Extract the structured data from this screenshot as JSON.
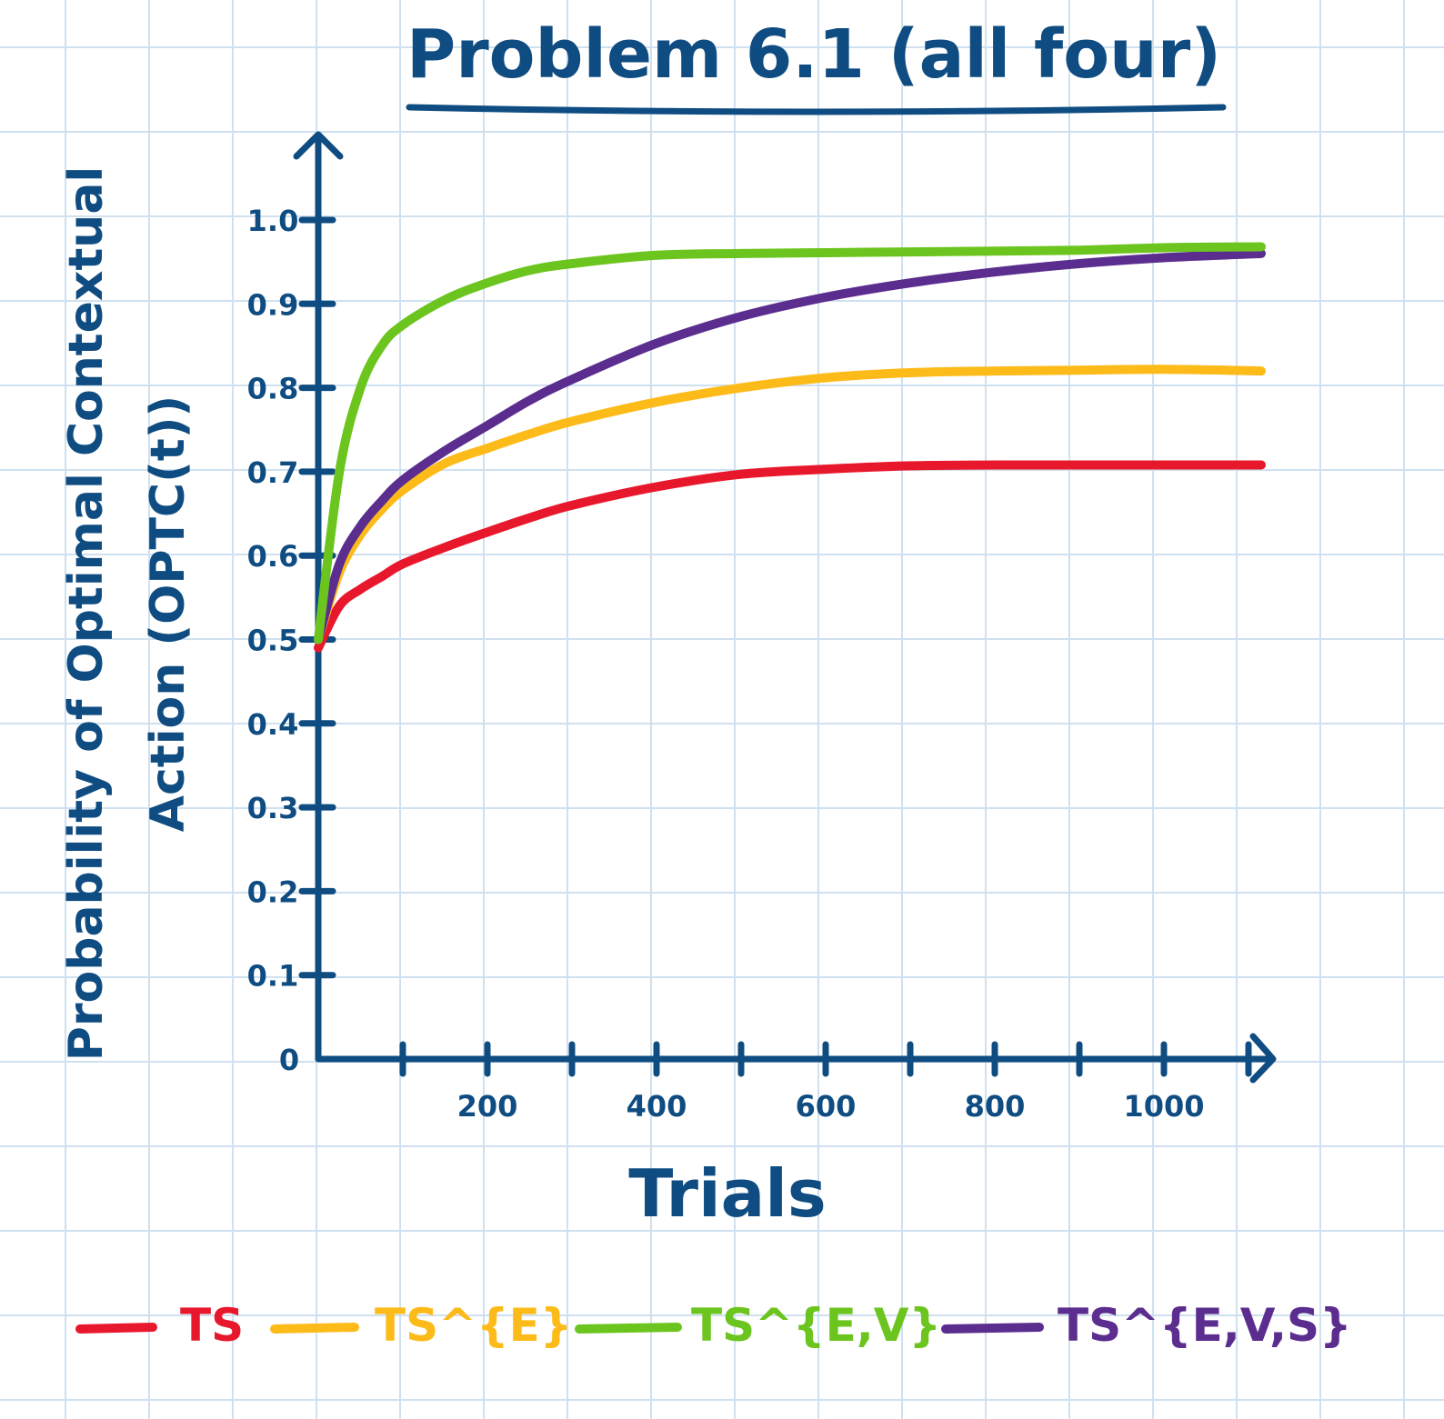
{
  "chart_data": {
    "type": "line",
    "title": "Problem 6.1 (all four)",
    "xlabel": "Trials",
    "ylabel_line1": "Probability of Optimal Contextual",
    "ylabel_line2": "Action (OPTC(t))",
    "xlim": [
      0,
      1115
    ],
    "ylim": [
      0,
      1.0
    ],
    "x_tick_labels": [
      "200",
      "400",
      "600",
      "800",
      "1000"
    ],
    "x_tick_values": [
      200,
      400,
      600,
      800,
      1000
    ],
    "x_minor_ticks": [
      100,
      300,
      500,
      700,
      900,
      1100
    ],
    "y_tick_labels": [
      "0",
      "0.1",
      "0.2",
      "0.3",
      "0.4",
      "0.5",
      "0.6",
      "0.7",
      "0.8",
      "0.9",
      "1.0"
    ],
    "y_tick_values": [
      0,
      0.1,
      0.2,
      0.3,
      0.4,
      0.5,
      0.6,
      0.7,
      0.8,
      0.9,
      1.0
    ],
    "grid": true,
    "legend_position": "bottom",
    "series": [
      {
        "name": "TS",
        "color": "#e8182c",
        "x": [
          0,
          25,
          50,
          75,
          100,
          150,
          200,
          250,
          300,
          400,
          500,
          600,
          700,
          800,
          900,
          1000,
          1115
        ],
        "y": [
          0.49,
          0.54,
          0.56,
          0.575,
          0.59,
          0.61,
          0.628,
          0.645,
          0.66,
          0.682,
          0.697,
          0.703,
          0.707,
          0.708,
          0.708,
          0.708,
          0.708
        ]
      },
      {
        "name": "TS^{E}",
        "color": "#fdbb1a",
        "x": [
          0,
          25,
          50,
          75,
          100,
          150,
          200,
          250,
          300,
          400,
          500,
          600,
          700,
          800,
          900,
          1000,
          1115
        ],
        "y": [
          0.5,
          0.58,
          0.625,
          0.655,
          0.678,
          0.71,
          0.728,
          0.745,
          0.76,
          0.783,
          0.8,
          0.812,
          0.818,
          0.82,
          0.821,
          0.822,
          0.82
        ]
      },
      {
        "name": "TS^{E,V}",
        "color": "#6cc51e",
        "x": [
          0,
          25,
          50,
          75,
          100,
          150,
          200,
          250,
          300,
          400,
          500,
          600,
          700,
          800,
          900,
          1000,
          1115
        ],
        "y": [
          0.5,
          0.7,
          0.8,
          0.85,
          0.875,
          0.905,
          0.925,
          0.94,
          0.948,
          0.958,
          0.96,
          0.961,
          0.962,
          0.963,
          0.964,
          0.967,
          0.968
        ]
      },
      {
        "name": "TS^{E,V,S}",
        "color": "#5b2d8e",
        "x": [
          0,
          25,
          50,
          75,
          100,
          150,
          200,
          250,
          300,
          400,
          500,
          600,
          700,
          800,
          900,
          1000,
          1115
        ],
        "y": [
          0.5,
          0.59,
          0.635,
          0.665,
          0.69,
          0.725,
          0.755,
          0.785,
          0.81,
          0.853,
          0.885,
          0.908,
          0.925,
          0.938,
          0.948,
          0.955,
          0.96
        ]
      }
    ]
  }
}
